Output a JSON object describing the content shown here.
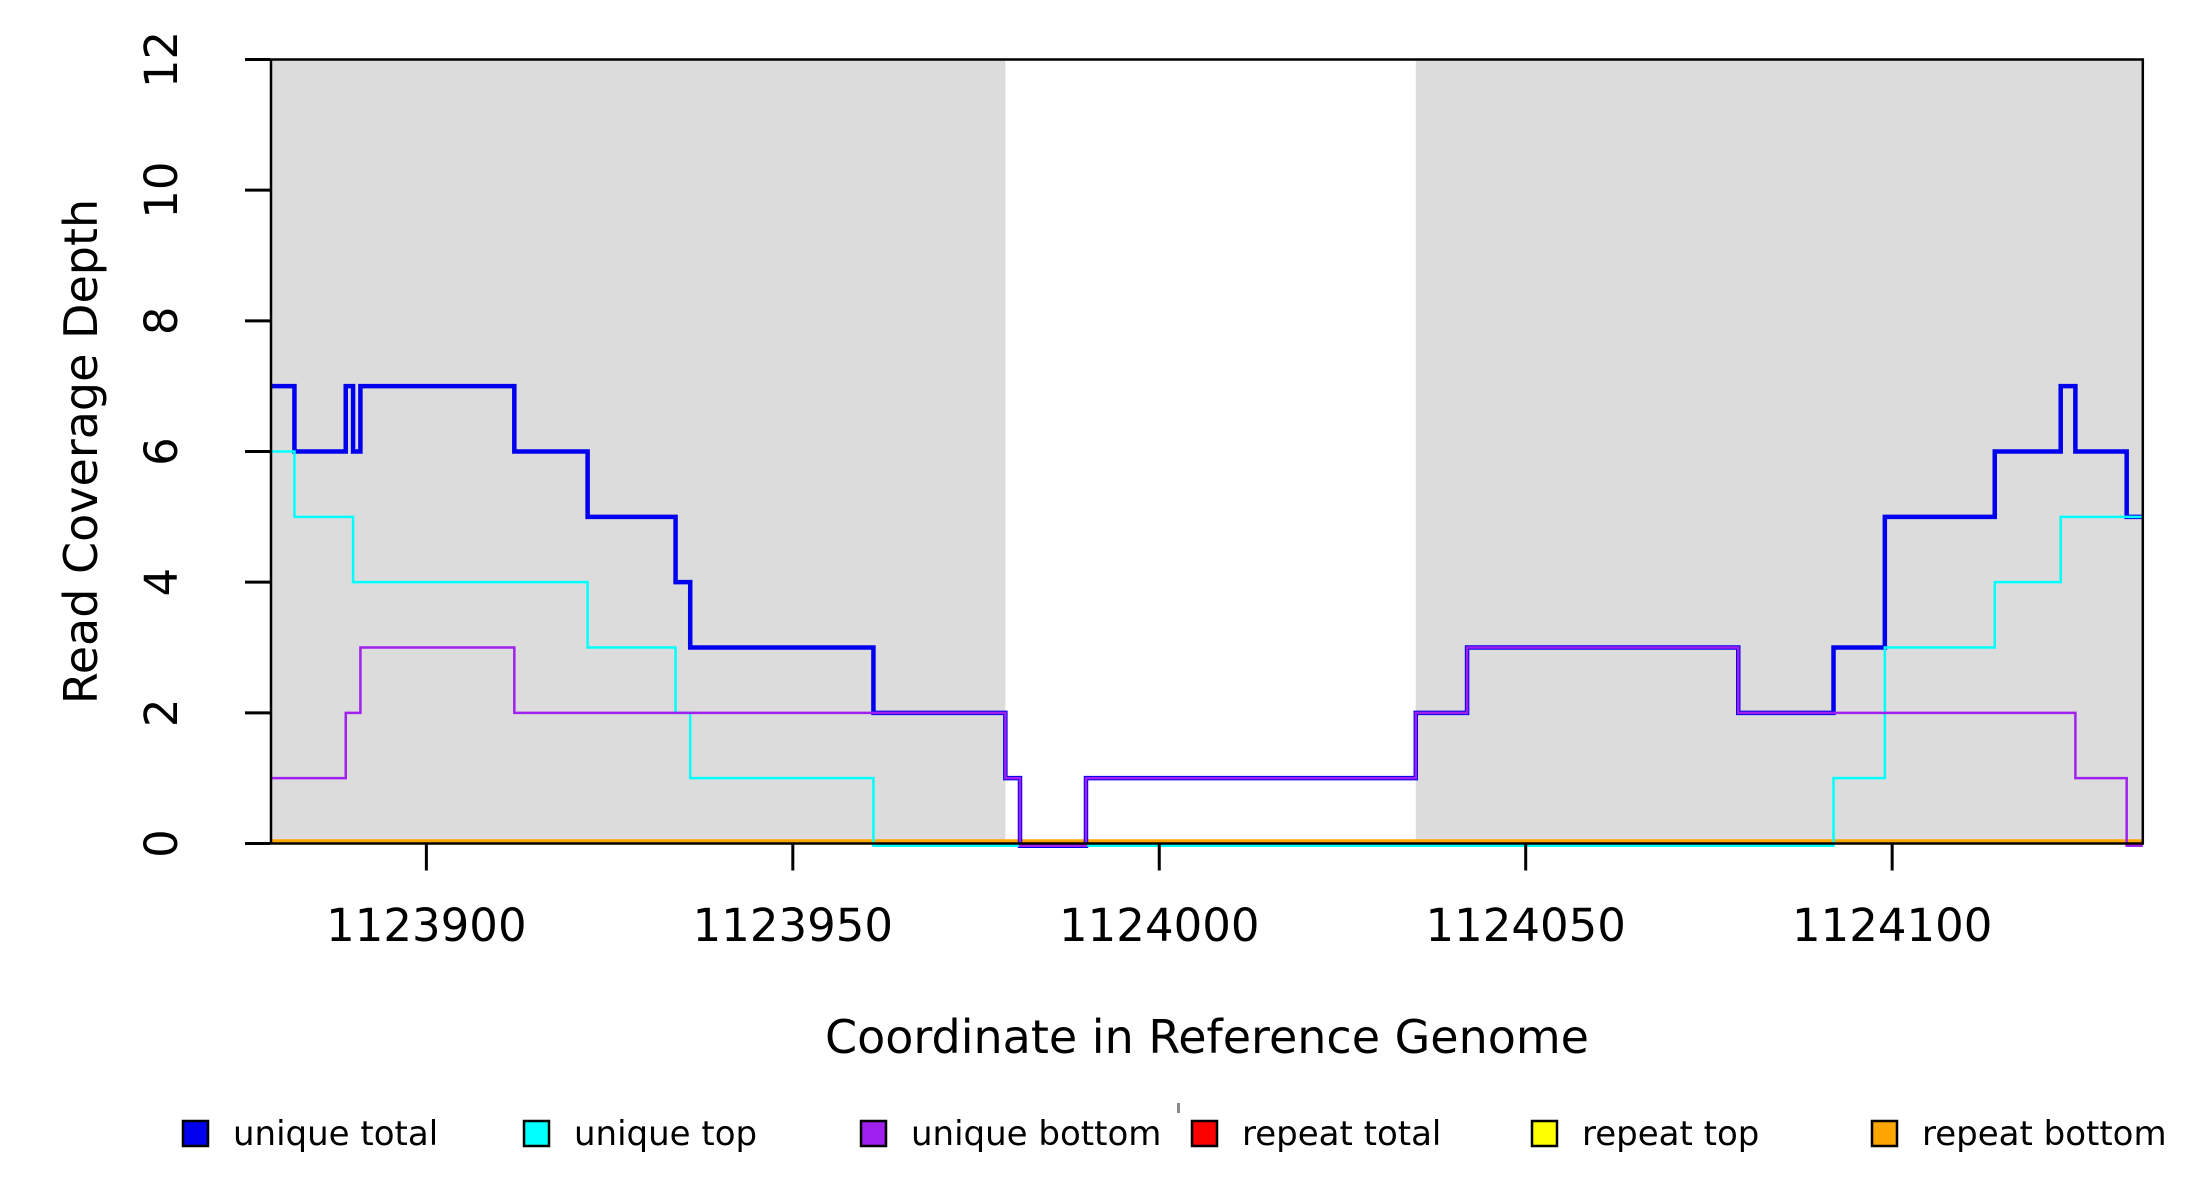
{
  "chart_data": {
    "type": "line",
    "subtype": "step",
    "title": "",
    "xlabel": "Coordinate in Reference Genome",
    "ylabel": "Read Coverage Depth",
    "xlim": [
      1123878.8,
      1124134.2
    ],
    "ylim": [
      0,
      12
    ],
    "x_ticks": [
      "1123900",
      "1123950",
      "1124000",
      "1124050",
      "1124100"
    ],
    "x_tick_values": [
      1123900,
      1123950,
      1124000,
      1124050,
      1124100
    ],
    "y_ticks": [
      "0",
      "2",
      "4",
      "6",
      "8",
      "10",
      "12"
    ],
    "y_tick_values": [
      0,
      2,
      4,
      6,
      8,
      10,
      12
    ],
    "grid": false,
    "background_color": "#FFFFFF",
    "box_color": "#000000",
    "shaded_regions": [
      {
        "from": 1123878.8,
        "to": 1123979,
        "color": "#DCDCDC"
      },
      {
        "from": 1124035,
        "to": 1124134.2,
        "color": "#DCDCDC"
      }
    ],
    "series": [
      {
        "name": "repeat total",
        "color": "#FF0000",
        "line_width": 2.5,
        "draw_order": 1,
        "steps": [
          [
            1123878.8,
            0
          ]
        ],
        "end_x": 1124134.2
      },
      {
        "name": "repeat top",
        "color": "#FFFF00",
        "line_width": 2.5,
        "draw_order": 2,
        "steps": [
          [
            1123878.8,
            0
          ]
        ],
        "end_x": 1124134.2
      },
      {
        "name": "repeat bottom",
        "color": "#FFA500",
        "line_width": 3.5,
        "draw_order": 3,
        "steps": [
          [
            1123878.8,
            0
          ]
        ],
        "end_x": 1124134.2
      },
      {
        "name": "unique total",
        "color": "#0000EE",
        "line_width": 4.5,
        "draw_order": 4,
        "steps": [
          [
            1123878.8,
            7
          ],
          [
            1123882,
            6
          ],
          [
            1123889,
            7
          ],
          [
            1123890,
            6
          ],
          [
            1123891,
            7
          ],
          [
            1123912,
            6
          ],
          [
            1123922,
            5
          ],
          [
            1123934,
            4
          ],
          [
            1123936,
            3
          ],
          [
            1123961,
            2
          ],
          [
            1123979,
            1
          ],
          [
            1123981,
            0
          ],
          [
            1123990,
            1
          ],
          [
            1124035,
            2
          ],
          [
            1124042,
            3
          ],
          [
            1124079,
            2
          ],
          [
            1124092,
            3
          ],
          [
            1124099,
            5
          ],
          [
            1124114,
            6
          ],
          [
            1124123,
            7
          ],
          [
            1124125,
            6
          ],
          [
            1124132,
            5
          ]
        ],
        "end_x": 1124134.2
      },
      {
        "name": "unique top",
        "color": "#00FFFF",
        "line_width": 2.5,
        "draw_order": 5,
        "steps": [
          [
            1123878.8,
            6
          ],
          [
            1123882,
            5
          ],
          [
            1123890,
            4
          ],
          [
            1123922,
            3
          ],
          [
            1123934,
            2
          ],
          [
            1123936,
            1
          ],
          [
            1123961,
            0
          ],
          [
            1124092,
            1
          ],
          [
            1124099,
            3
          ],
          [
            1124114,
            4
          ],
          [
            1124123,
            5
          ]
        ],
        "end_x": 1124134.2
      },
      {
        "name": "unique bottom",
        "color": "#A020F0",
        "line_width": 2.5,
        "draw_order": 6,
        "steps": [
          [
            1123878.8,
            1
          ],
          [
            1123889,
            2
          ],
          [
            1123891,
            3
          ],
          [
            1123912,
            2
          ],
          [
            1123979,
            1
          ],
          [
            1123981,
            0
          ],
          [
            1123990,
            1
          ],
          [
            1124035,
            2
          ],
          [
            1124042,
            3
          ],
          [
            1124079,
            2
          ],
          [
            1124125,
            1
          ],
          [
            1124132,
            0
          ]
        ],
        "end_x": 1124134.2
      }
    ],
    "legend": {
      "position": "bottom",
      "items": [
        {
          "label": "unique total",
          "color": "#0000EE"
        },
        {
          "label": "unique top",
          "color": "#00FFFF"
        },
        {
          "label": "unique bottom",
          "color": "#A020F0"
        },
        {
          "label": "repeat total",
          "color": "#FF0000"
        },
        {
          "label": "repeat top",
          "color": "#FFFF00"
        },
        {
          "label": "repeat bottom",
          "color": "#FFA500"
        }
      ]
    }
  }
}
